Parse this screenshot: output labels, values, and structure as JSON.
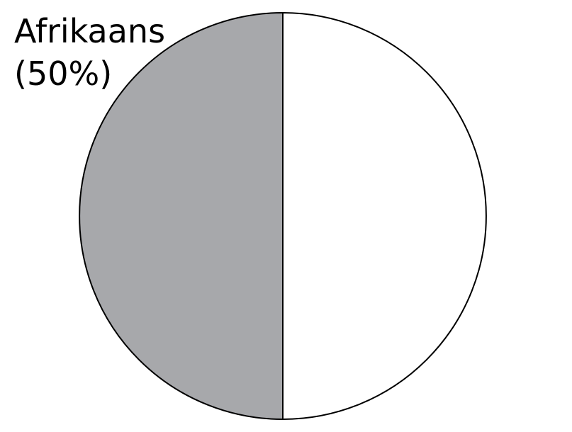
{
  "chart_data": {
    "type": "pie",
    "title": "",
    "slices": [
      {
        "label": "Afrikaans",
        "value": 50,
        "display": "(50%)",
        "color": "#a7a8ab"
      },
      {
        "label": "",
        "value": 50,
        "display": "",
        "color": "#ffffff"
      }
    ],
    "start_angle_deg": 0,
    "direction": "counterclockwise",
    "stroke_color": "#000000"
  }
}
